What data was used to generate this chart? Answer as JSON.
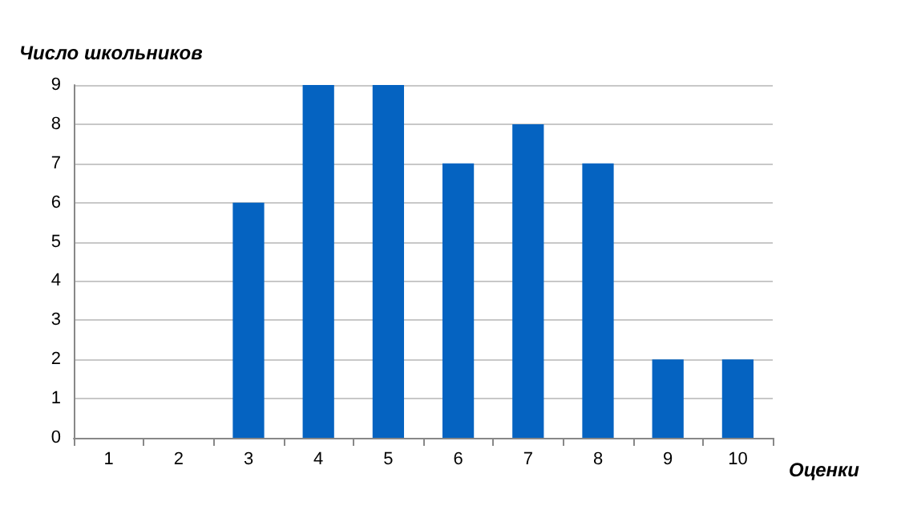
{
  "chart_data": {
    "type": "bar",
    "ylabel": "Число школьников",
    "xlabel": "Оценки",
    "categories": [
      "1",
      "2",
      "3",
      "4",
      "5",
      "6",
      "7",
      "8",
      "9",
      "10"
    ],
    "values": [
      0,
      0,
      6,
      9,
      9,
      7,
      8,
      7,
      2,
      2
    ],
    "color": "#0563c1",
    "ylim": [
      0,
      9
    ],
    "yticks": [
      0,
      1,
      2,
      3,
      4,
      5,
      6,
      7,
      8,
      9
    ],
    "grid": "y"
  }
}
